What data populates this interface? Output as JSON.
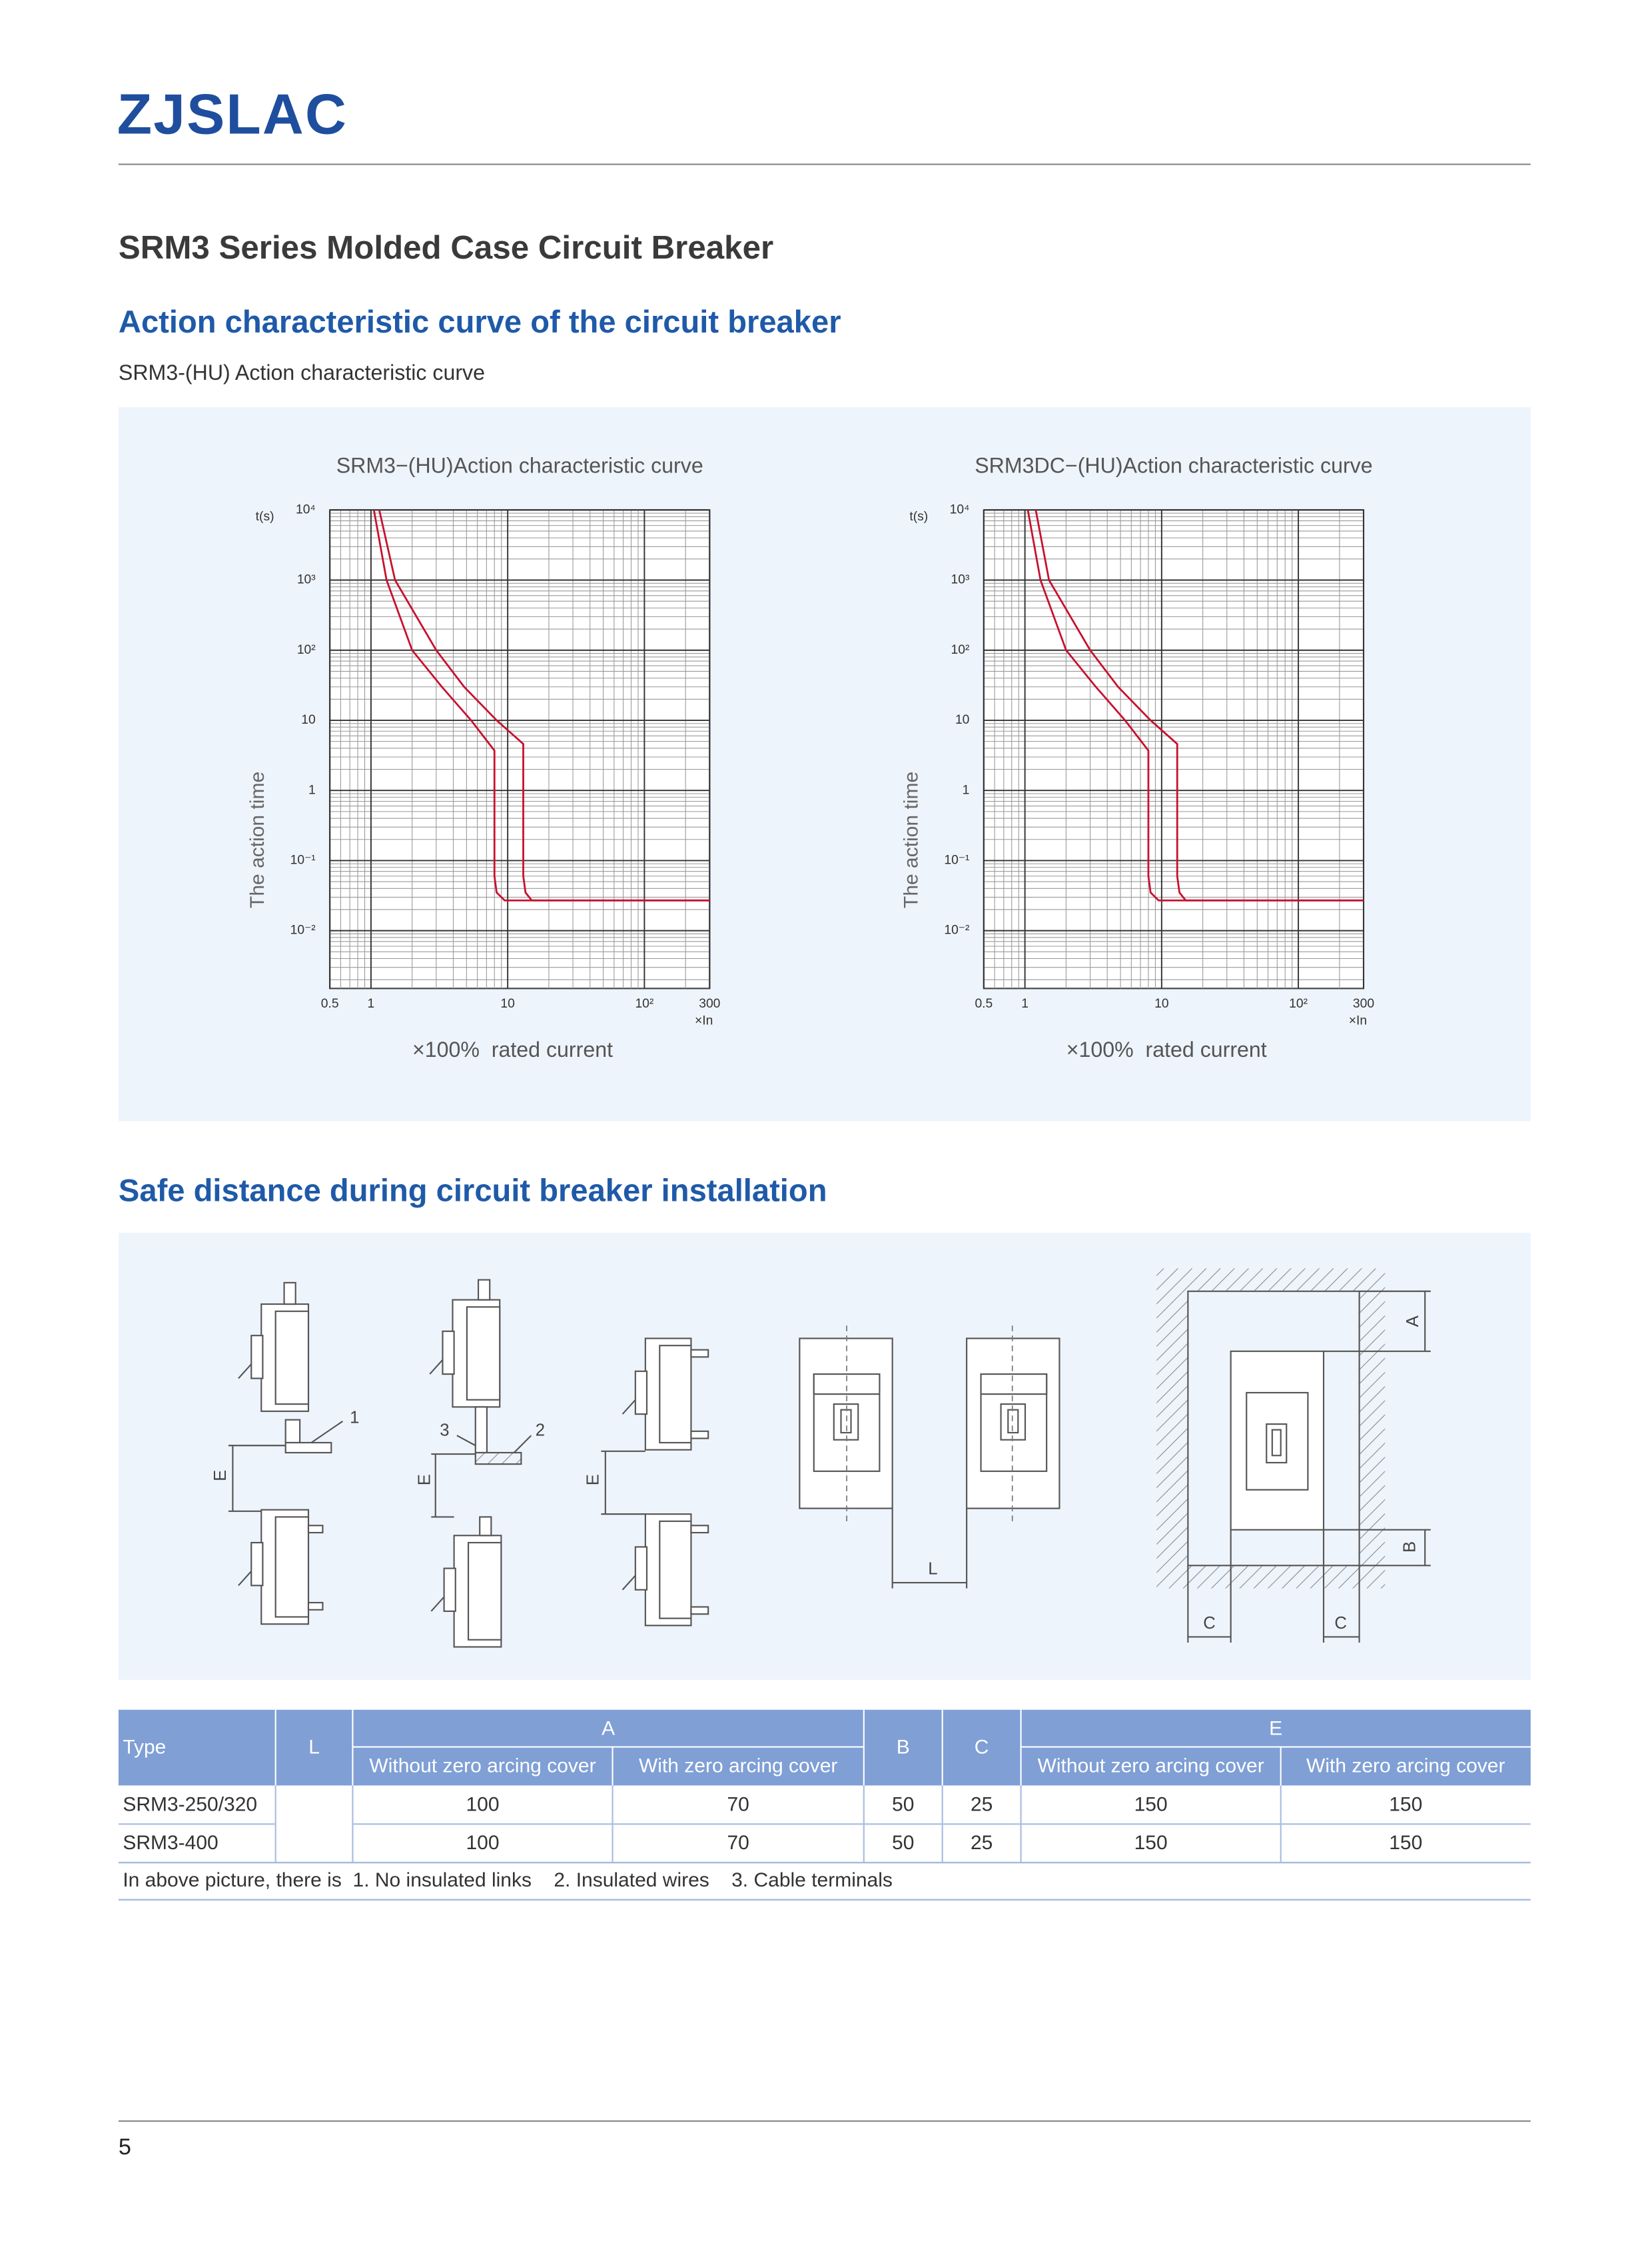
{
  "header": {
    "logo": "ZJSLAC"
  },
  "title": "SRM3 Series Molded Case Circuit Breaker",
  "section1": {
    "heading": "Action characteristic curve of the circuit breaker",
    "subheading": "SRM3-(HU) Action characteristic curve"
  },
  "charts": [
    {
      "type": "line",
      "title": "SRM3−(HU)Action characteristic curve",
      "y_unit": "t(s)",
      "y_label": "The action time",
      "x_unit": "×In",
      "x_label": "×100%  rated current",
      "log_x": true,
      "log_y": true,
      "grid": true,
      "xlim": [
        0.5,
        300
      ],
      "ylim": [
        0.0015,
        10000
      ],
      "xticks": [
        0.5,
        1,
        10,
        {
          "value": 100,
          "label": "10²"
        },
        300
      ],
      "yticks": [
        {
          "value": 10000,
          "label": "10⁴"
        },
        {
          "value": 1000,
          "label": "10³"
        },
        {
          "value": 100,
          "label": "10²"
        },
        10,
        1,
        {
          "value": 0.1,
          "label": "10⁻¹"
        },
        {
          "value": 0.01,
          "label": "10⁻²"
        }
      ],
      "series": [
        {
          "color": "#c8102e",
          "x": [
            1.05,
            1.3,
            2,
            3.3,
            5.4,
            8,
            8,
            8.3,
            9.5,
            300
          ],
          "values": [
            10000,
            1000,
            100,
            30,
            10,
            3.7,
            0.06,
            0.035,
            0.027,
            0.027
          ]
        },
        {
          "color": "#c8102e",
          "x": [
            1.15,
            1.5,
            3,
            4.8,
            8.3,
            13,
            13,
            13.5,
            15,
            300
          ],
          "values": [
            10000,
            1000,
            100,
            30,
            10,
            4.6,
            0.06,
            0.035,
            0.027,
            0.027
          ]
        }
      ]
    },
    {
      "type": "line",
      "title": "SRM3DC−(HU)Action characteristic curve",
      "y_unit": "t(s)",
      "y_label": "The action time",
      "x_unit": "×In",
      "x_label": "×100%  rated current",
      "log_x": true,
      "log_y": true,
      "grid": true,
      "xlim": [
        0.5,
        300
      ],
      "ylim": [
        0.0015,
        10000
      ],
      "xticks": [
        0.5,
        1,
        10,
        {
          "value": 100,
          "label": "10²"
        },
        300
      ],
      "yticks": [
        {
          "value": 10000,
          "label": "10⁴"
        },
        {
          "value": 1000,
          "label": "10³"
        },
        {
          "value": 100,
          "label": "10²"
        },
        10,
        1,
        {
          "value": 0.1,
          "label": "10⁻¹"
        },
        {
          "value": 0.01,
          "label": "10⁻²"
        }
      ],
      "series": [
        {
          "color": "#c8102e",
          "x": [
            1.05,
            1.3,
            2,
            3.3,
            5.4,
            8,
            8,
            8.3,
            9.5,
            300
          ],
          "values": [
            10000,
            1000,
            100,
            30,
            10,
            3.7,
            0.06,
            0.035,
            0.027,
            0.027
          ]
        },
        {
          "color": "#c8102e",
          "x": [
            1.2,
            1.5,
            3,
            4.8,
            8.3,
            13,
            13,
            13.5,
            15,
            300
          ],
          "values": [
            10000,
            1000,
            100,
            30,
            10,
            4.6,
            0.06,
            0.035,
            0.027,
            0.027
          ]
        }
      ]
    }
  ],
  "section2": {
    "heading": "Safe distance during circuit breaker installation"
  },
  "figure_labels": [
    "1",
    "3",
    "2",
    "E",
    "E",
    "E",
    "L",
    "A",
    "B",
    "C",
    "C"
  ],
  "table": {
    "header": {
      "type": "Type",
      "l": "L",
      "a": "A",
      "a_without": "Without zero arcing cover",
      "a_with": "With zero arcing cover",
      "b": "B",
      "c": "C",
      "e": "E",
      "e_without": "Without zero arcing cover",
      "e_with": "With zero arcing cover"
    },
    "rows": [
      [
        "SRM3-250/320",
        100,
        70,
        50,
        25,
        150,
        150
      ],
      [
        "SRM3-400",
        100,
        70,
        50,
        25,
        150,
        150
      ]
    ],
    "note": "In above picture, there is  1. No insulated links    2. Insulated wires    3. Cable terminals"
  },
  "page_number": 5
}
